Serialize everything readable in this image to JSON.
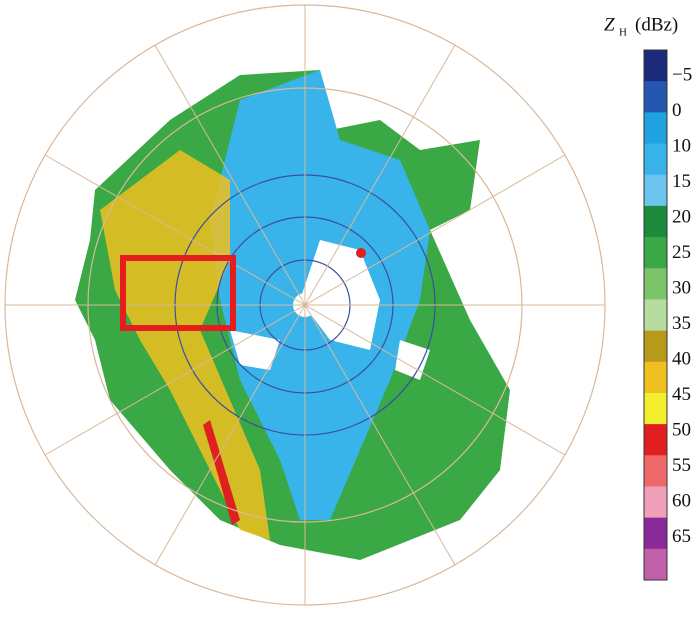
{
  "colorbar": {
    "symbol": "Z",
    "subscript": "H",
    "unit": "(dBz)",
    "ticks": [
      {
        "value": -5,
        "label": "−5"
      },
      0,
      10,
      15,
      20,
      25,
      30,
      35,
      40,
      45,
      50,
      55,
      60,
      65
    ],
    "colors": [
      "#1c2a7a",
      "#2458b0",
      "#1fa2e0",
      "#38b4ea",
      "#6cc4ee",
      "#1e8a3c",
      "#3aa845",
      "#7cc468",
      "#b6dca0",
      "#b89a1a",
      "#f0c020",
      "#f4ee30",
      "#e02020",
      "#ee6a6a",
      "#f0a0b8",
      "#8a2a9a",
      "#c060a8"
    ]
  }
}
